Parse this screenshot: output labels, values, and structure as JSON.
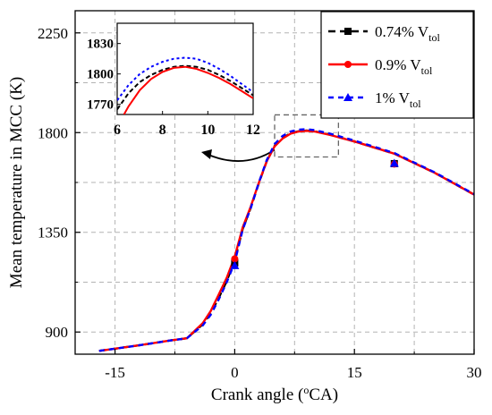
{
  "chart_data": {
    "type": "line",
    "xlabel_main": "Crank angle (",
    "xlabel_sup": "o",
    "xlabel_rest": "CA)",
    "ylabel": "Mean temperature in MCC (K)",
    "xlim": [
      -20,
      30
    ],
    "ylim": [
      800,
      2350
    ],
    "xticks": [
      -15,
      0,
      15,
      30
    ],
    "xtick_labels": [
      "-15",
      "0",
      "15",
      "30"
    ],
    "yticks": [
      900,
      1350,
      1800,
      2250
    ],
    "ytick_labels": [
      "900",
      "1350",
      "1800",
      "2250"
    ],
    "grid": true,
    "series": [
      {
        "name": "0.74% V_tol",
        "label_main": "0.74% V",
        "label_sub": "tol",
        "color": "#000000",
        "dash": "8,5",
        "marker": "square",
        "x": [
          -17,
          -12,
          -8,
          -6,
          -4,
          -3,
          -2,
          -1,
          0,
          1,
          2,
          3,
          4,
          5,
          6,
          7,
          8,
          9,
          10,
          12,
          15,
          20,
          25,
          30
        ],
        "y": [
          815,
          840,
          862,
          872,
          935,
          985,
          1055,
          1130,
          1225,
          1365,
          1460,
          1570,
          1670,
          1740,
          1775,
          1797,
          1806,
          1809,
          1806,
          1790,
          1760,
          1705,
          1620,
          1520
        ],
        "marker_x": [
          0,
          20
        ],
        "marker_y": [
          1212,
          1660
        ]
      },
      {
        "name": "0.9% V_tol",
        "label_main": "0.9% V",
        "label_sub": "tol",
        "color": "#ff0000",
        "dash": "",
        "marker": "circle",
        "x": [
          -17,
          -12,
          -8,
          -6,
          -4,
          -3,
          -2,
          -1,
          0,
          1,
          2,
          3,
          4,
          5,
          6,
          7,
          8,
          9,
          10,
          12,
          15,
          20,
          25,
          30
        ],
        "y": [
          815,
          840,
          862,
          872,
          940,
          995,
          1070,
          1145,
          1240,
          1372,
          1465,
          1572,
          1670,
          1738,
          1773,
          1795,
          1805,
          1808,
          1805,
          1789,
          1760,
          1705,
          1620,
          1520
        ],
        "marker_x": [
          0,
          20
        ],
        "marker_y": [
          1230,
          1658
        ]
      },
      {
        "name": "1% V_tol",
        "label_main": "1% V",
        "label_sub": "tol",
        "color": "#0000ff",
        "dash": "6,5",
        "marker": "triangle",
        "x": [
          -17,
          -12,
          -8,
          -6,
          -4,
          -3,
          -2,
          -1,
          0,
          1,
          2,
          3,
          4,
          5,
          6,
          7,
          8,
          9,
          10,
          12,
          15,
          20,
          25,
          30
        ],
        "y": [
          815,
          840,
          862,
          872,
          930,
          978,
          1048,
          1125,
          1215,
          1362,
          1458,
          1572,
          1675,
          1748,
          1785,
          1805,
          1813,
          1815,
          1811,
          1795,
          1764,
          1708,
          1622,
          1522
        ],
        "marker_x": [
          0,
          20
        ],
        "marker_y": [
          1200,
          1662
        ]
      }
    ],
    "inset": {
      "xlim": [
        6,
        12
      ],
      "ylim": [
        1760,
        1850
      ],
      "xticks": [
        6,
        8,
        10,
        12
      ],
      "xtick_labels": [
        "6",
        "8",
        "10",
        "12"
      ],
      "yticks": [
        1770,
        1800,
        1830
      ],
      "ytick_labels": [
        "1770",
        "1800",
        "1830"
      ],
      "series": [
        {
          "x": [
            6.0,
            6.5,
            7,
            7.5,
            8,
            8.5,
            9,
            9.5,
            10,
            10.5,
            11,
            11.5,
            12
          ],
          "y": [
            1765,
            1781,
            1792,
            1799,
            1804,
            1807,
            1808,
            1807,
            1804,
            1799,
            1793,
            1786,
            1779
          ]
        },
        {
          "x": [
            6.3,
            6.5,
            7,
            7.5,
            8,
            8.5,
            9,
            9.5,
            10,
            10.5,
            11,
            11.5,
            12
          ],
          "y": [
            1760,
            1768,
            1784,
            1795,
            1802,
            1806,
            1807,
            1805,
            1801,
            1796,
            1790,
            1783,
            1776
          ]
        },
        {
          "x": [
            6.0,
            6.5,
            7,
            7.5,
            8,
            8.5,
            9,
            9.5,
            10,
            10.5,
            11,
            11.5,
            12
          ],
          "y": [
            1774,
            1789,
            1800,
            1807,
            1812,
            1815,
            1816,
            1815,
            1811,
            1805,
            1798,
            1790,
            1782
          ]
        }
      ],
      "zoom_box_x": [
        5,
        13
      ],
      "zoom_box_y": [
        1690,
        1880
      ]
    }
  }
}
